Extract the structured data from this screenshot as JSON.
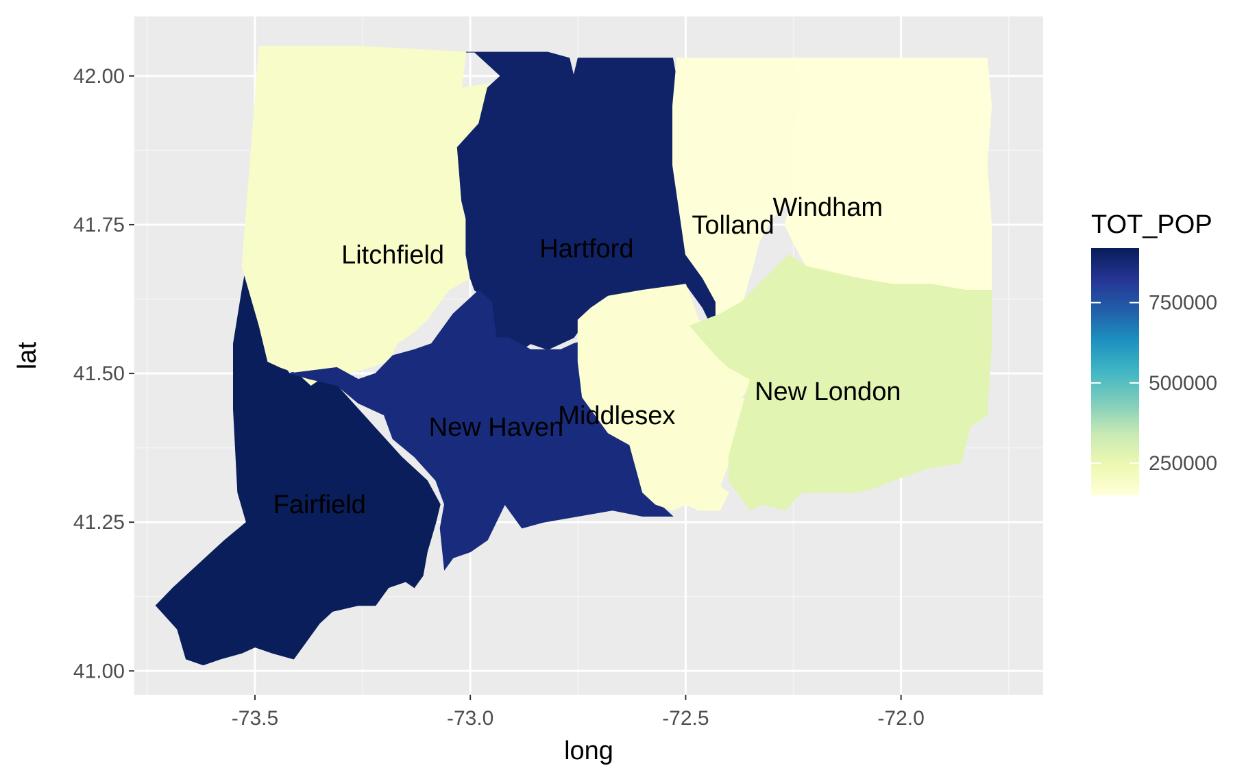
{
  "chart_data": {
    "type": "choropleth",
    "xlabel": "long",
    "ylabel": "lat",
    "xlim": [
      -73.78,
      -71.67
    ],
    "ylim": [
      40.96,
      42.1
    ],
    "x_ticks": [
      -73.5,
      -73.0,
      -72.5,
      -72.0
    ],
    "x_tick_labels": [
      "-73.5",
      "-73.0",
      "-72.5",
      "-72.0"
    ],
    "y_ticks": [
      41.0,
      41.25,
      41.5,
      41.75,
      42.0
    ],
    "y_tick_labels": [
      "41.00",
      "41.25",
      "41.50",
      "41.75",
      "42.00"
    ],
    "grid": true,
    "legend": {
      "title": "TOT_POP",
      "position": "right",
      "range": [
        150000,
        920000
      ],
      "breaks": [
        250000,
        500000,
        750000
      ],
      "break_labels": [
        "250000",
        "500000",
        "750000"
      ],
      "palette": [
        "#ffffd9",
        "#edf8b1",
        "#c7e9b4",
        "#7fcdbb",
        "#41b6c4",
        "#1d91c0",
        "#225ea8",
        "#253494",
        "#081d58"
      ]
    },
    "regions": [
      {
        "name": "Fairfield",
        "value": 916829,
        "label_pos": [
          -73.35,
          41.28
        ],
        "polygon": [
          [
            -73.52,
            41.68
          ],
          [
            -73.49,
            41.66
          ],
          [
            -73.48,
            41.6
          ],
          [
            -73.46,
            41.54
          ],
          [
            -73.42,
            41.5
          ],
          [
            -73.38,
            41.51
          ],
          [
            -73.35,
            41.49
          ],
          [
            -73.31,
            41.48
          ],
          [
            -73.26,
            41.44
          ],
          [
            -73.21,
            41.4
          ],
          [
            -73.16,
            41.36
          ],
          [
            -73.1,
            41.32
          ],
          [
            -73.07,
            41.28
          ],
          [
            -73.08,
            41.25
          ],
          [
            -73.1,
            41.2
          ],
          [
            -73.11,
            41.16
          ],
          [
            -73.13,
            41.14
          ],
          [
            -73.15,
            41.15
          ],
          [
            -73.19,
            41.14
          ],
          [
            -73.22,
            41.11
          ],
          [
            -73.26,
            41.11
          ],
          [
            -73.32,
            41.1
          ],
          [
            -73.35,
            41.08
          ],
          [
            -73.38,
            41.05
          ],
          [
            -73.41,
            41.02
          ],
          [
            -73.46,
            41.03
          ],
          [
            -73.5,
            41.04
          ],
          [
            -73.53,
            41.03
          ],
          [
            -73.58,
            41.02
          ],
          [
            -73.62,
            41.01
          ],
          [
            -73.66,
            41.02
          ],
          [
            -73.68,
            41.07
          ],
          [
            -73.73,
            41.11
          ],
          [
            -73.69,
            41.14
          ],
          [
            -73.63,
            41.18
          ],
          [
            -73.57,
            41.22
          ],
          [
            -73.52,
            41.25
          ],
          [
            -73.54,
            41.3
          ],
          [
            -73.55,
            41.44
          ],
          [
            -73.55,
            41.55
          ],
          [
            -73.53,
            41.64
          ]
        ]
      },
      {
        "name": "Litchfield",
        "value": 189927,
        "label_pos": [
          -73.18,
          41.7
        ],
        "polygon": [
          [
            -73.49,
            42.05
          ],
          [
            -73.26,
            42.05
          ],
          [
            -73.01,
            42.04
          ],
          [
            -73.02,
            41.98
          ],
          [
            -72.93,
            41.99
          ],
          [
            -72.96,
            41.9
          ],
          [
            -72.98,
            41.85
          ],
          [
            -72.99,
            41.8
          ],
          [
            -73.01,
            41.76
          ],
          [
            -73.01,
            41.7
          ],
          [
            -73.0,
            41.66
          ],
          [
            -73.05,
            41.64
          ],
          [
            -73.1,
            41.59
          ],
          [
            -73.13,
            41.57
          ],
          [
            -73.17,
            41.55
          ],
          [
            -73.19,
            41.52
          ],
          [
            -73.28,
            41.5
          ],
          [
            -73.33,
            41.5
          ],
          [
            -73.37,
            41.48
          ],
          [
            -73.4,
            41.5
          ],
          [
            -73.44,
            41.51
          ],
          [
            -73.47,
            41.52
          ],
          [
            -73.49,
            41.58
          ],
          [
            -73.51,
            41.63
          ],
          [
            -73.53,
            41.68
          ]
        ]
      },
      {
        "name": "Hartford",
        "value": 894014,
        "label_pos": [
          -72.73,
          41.71
        ],
        "polygon": [
          [
            -73.01,
            42.04
          ],
          [
            -72.82,
            42.04
          ],
          [
            -72.77,
            42.03
          ],
          [
            -72.76,
            42.0
          ],
          [
            -72.75,
            42.03
          ],
          [
            -72.64,
            42.03
          ],
          [
            -72.53,
            42.03
          ],
          [
            -72.52,
            41.99
          ],
          [
            -72.51,
            41.95
          ],
          [
            -72.51,
            41.85
          ],
          [
            -72.51,
            41.8
          ],
          [
            -72.48,
            41.78
          ],
          [
            -72.47,
            41.73
          ],
          [
            -72.45,
            41.7
          ],
          [
            -72.44,
            41.65
          ],
          [
            -72.41,
            41.62
          ],
          [
            -72.41,
            41.58
          ],
          [
            -72.44,
            41.58
          ],
          [
            -72.46,
            41.61
          ],
          [
            -72.5,
            41.65
          ],
          [
            -72.56,
            41.64
          ],
          [
            -72.63,
            41.63
          ],
          [
            -72.7,
            41.62
          ],
          [
            -72.73,
            41.59
          ],
          [
            -72.76,
            41.56
          ],
          [
            -72.79,
            41.55
          ],
          [
            -72.82,
            41.54
          ],
          [
            -72.86,
            41.55
          ],
          [
            -72.88,
            41.54
          ],
          [
            -72.91,
            41.56
          ],
          [
            -72.94,
            41.56
          ],
          [
            -72.95,
            41.62
          ],
          [
            -72.99,
            41.64
          ],
          [
            -73.0,
            41.66
          ],
          [
            -73.01,
            41.7
          ],
          [
            -73.01,
            41.76
          ],
          [
            -73.02,
            41.79
          ],
          [
            -73.03,
            41.88
          ],
          [
            -72.98,
            41.92
          ],
          [
            -72.96,
            41.98
          ],
          [
            -72.93,
            42.0
          ],
          [
            -72.99,
            42.04
          ]
        ]
      },
      {
        "name": "Tolland",
        "value": 152691,
        "label_pos": [
          -72.39,
          41.75
        ],
        "polygon": [
          [
            -72.52,
            42.03
          ],
          [
            -72.25,
            42.03
          ],
          [
            -72.23,
            41.98
          ],
          [
            -72.25,
            41.9
          ],
          [
            -72.25,
            41.85
          ],
          [
            -72.24,
            41.8
          ],
          [
            -72.3,
            41.76
          ],
          [
            -72.33,
            41.72
          ],
          [
            -72.34,
            41.69
          ],
          [
            -72.36,
            41.64
          ],
          [
            -72.38,
            41.59
          ],
          [
            -72.43,
            41.58
          ],
          [
            -72.43,
            41.62
          ],
          [
            -72.46,
            41.66
          ],
          [
            -72.5,
            41.7
          ],
          [
            -72.51,
            41.75
          ],
          [
            -72.52,
            41.8
          ],
          [
            -72.53,
            41.85
          ],
          [
            -72.53,
            41.95
          ]
        ]
      },
      {
        "name": "Windham",
        "value": 118428,
        "label_pos": [
          -72.17,
          41.78
        ],
        "polygon": [
          [
            -72.25,
            42.03
          ],
          [
            -72.03,
            42.03
          ],
          [
            -71.8,
            42.03
          ],
          [
            -71.79,
            41.95
          ],
          [
            -71.8,
            41.85
          ],
          [
            -71.79,
            41.75
          ],
          [
            -71.79,
            41.64
          ],
          [
            -71.86,
            41.64
          ],
          [
            -71.93,
            41.64
          ],
          [
            -72.02,
            41.65
          ],
          [
            -72.1,
            41.66
          ],
          [
            -72.16,
            41.67
          ],
          [
            -72.22,
            41.68
          ],
          [
            -72.25,
            41.72
          ],
          [
            -72.27,
            41.75
          ],
          [
            -72.25,
            41.8
          ],
          [
            -72.25,
            41.85
          ],
          [
            -72.25,
            41.9
          ],
          [
            -72.23,
            41.98
          ]
        ]
      },
      {
        "name": "New Haven",
        "value": 862477,
        "label_pos": [
          -72.94,
          41.41
        ],
        "polygon": [
          [
            -73.42,
            41.5
          ],
          [
            -73.31,
            41.51
          ],
          [
            -73.26,
            41.49
          ],
          [
            -73.22,
            41.5
          ],
          [
            -73.18,
            41.53
          ],
          [
            -73.13,
            41.54
          ],
          [
            -73.09,
            41.55
          ],
          [
            -73.04,
            41.6
          ],
          [
            -72.98,
            41.64
          ],
          [
            -72.95,
            41.62
          ],
          [
            -72.94,
            41.56
          ],
          [
            -72.91,
            41.56
          ],
          [
            -72.86,
            41.54
          ],
          [
            -72.79,
            41.54
          ],
          [
            -72.76,
            41.55
          ],
          [
            -72.71,
            41.56
          ],
          [
            -72.66,
            41.55
          ],
          [
            -72.58,
            41.45
          ],
          [
            -72.55,
            41.38
          ],
          [
            -72.55,
            41.33
          ],
          [
            -72.56,
            41.28
          ],
          [
            -72.53,
            41.26
          ],
          [
            -72.6,
            41.26
          ],
          [
            -72.67,
            41.27
          ],
          [
            -72.75,
            41.26
          ],
          [
            -72.83,
            41.25
          ],
          [
            -72.88,
            41.24
          ],
          [
            -72.92,
            41.28
          ],
          [
            -72.94,
            41.25
          ],
          [
            -72.96,
            41.22
          ],
          [
            -73.0,
            41.2
          ],
          [
            -73.04,
            41.19
          ],
          [
            -73.06,
            41.17
          ],
          [
            -73.07,
            41.24
          ],
          [
            -73.06,
            41.28
          ],
          [
            -73.08,
            41.32
          ],
          [
            -73.13,
            41.36
          ],
          [
            -73.18,
            41.39
          ],
          [
            -73.2,
            41.43
          ],
          [
            -73.26,
            41.45
          ],
          [
            -73.31,
            41.48
          ],
          [
            -73.37,
            41.49
          ]
        ]
      },
      {
        "name": "Middlesex",
        "value": 165676,
        "label_pos": [
          -72.66,
          41.43
        ],
        "polygon": [
          [
            -72.75,
            41.59
          ],
          [
            -72.72,
            41.61
          ],
          [
            -72.68,
            41.63
          ],
          [
            -72.6,
            41.64
          ],
          [
            -72.5,
            41.65
          ],
          [
            -72.47,
            41.59
          ],
          [
            -72.42,
            41.57
          ],
          [
            -72.4,
            41.52
          ],
          [
            -72.33,
            41.51
          ],
          [
            -72.34,
            41.49
          ],
          [
            -72.37,
            41.46
          ],
          [
            -72.34,
            41.44
          ],
          [
            -72.4,
            41.35
          ],
          [
            -72.42,
            41.31
          ],
          [
            -72.4,
            41.3
          ],
          [
            -72.42,
            41.27
          ],
          [
            -72.47,
            41.27
          ],
          [
            -72.5,
            41.28
          ],
          [
            -72.53,
            41.27
          ],
          [
            -72.57,
            41.28
          ],
          [
            -72.6,
            41.3
          ],
          [
            -72.63,
            41.38
          ],
          [
            -72.68,
            41.4
          ],
          [
            -72.74,
            41.46
          ],
          [
            -72.75,
            41.52
          ]
        ]
      },
      {
        "name": "New London",
        "value": 274055,
        "label_pos": [
          -72.17,
          41.47
        ],
        "polygon": [
          [
            -72.49,
            41.58
          ],
          [
            -72.42,
            41.6
          ],
          [
            -72.37,
            41.62
          ],
          [
            -72.33,
            41.65
          ],
          [
            -72.26,
            41.7
          ],
          [
            -72.22,
            41.68
          ],
          [
            -72.16,
            41.67
          ],
          [
            -72.1,
            41.66
          ],
          [
            -72.02,
            41.65
          ],
          [
            -71.93,
            41.65
          ],
          [
            -71.85,
            41.64
          ],
          [
            -71.79,
            41.64
          ],
          [
            -71.79,
            41.55
          ],
          [
            -71.8,
            41.43
          ],
          [
            -71.84,
            41.41
          ],
          [
            -71.86,
            41.35
          ],
          [
            -71.94,
            41.34
          ],
          [
            -72.02,
            41.32
          ],
          [
            -72.05,
            41.31
          ],
          [
            -72.1,
            41.3
          ],
          [
            -72.17,
            41.3
          ],
          [
            -72.23,
            41.3
          ],
          [
            -72.27,
            41.27
          ],
          [
            -72.32,
            41.28
          ],
          [
            -72.35,
            41.27
          ],
          [
            -72.4,
            41.32
          ],
          [
            -72.4,
            41.36
          ],
          [
            -72.37,
            41.44
          ],
          [
            -72.35,
            41.49
          ],
          [
            -72.4,
            41.51
          ],
          [
            -72.43,
            41.53
          ]
        ]
      }
    ]
  }
}
